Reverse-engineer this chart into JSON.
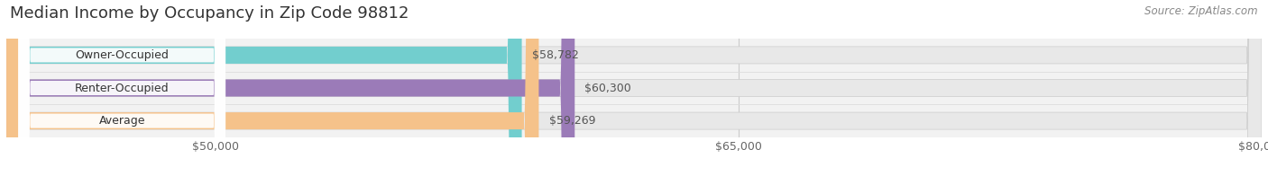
{
  "title": "Median Income by Occupancy in Zip Code 98812",
  "source": "Source: ZipAtlas.com",
  "categories": [
    "Owner-Occupied",
    "Renter-Occupied",
    "Average"
  ],
  "values": [
    58782,
    60300,
    59269
  ],
  "labels": [
    "$58,782",
    "$60,300",
    "$59,269"
  ],
  "bar_colors": [
    "#72cece",
    "#9b7bb8",
    "#f5c28a"
  ],
  "bar_bg_color": "#e8e8e8",
  "xmin": 44000,
  "xmax": 80000,
  "xticks": [
    50000,
    65000,
    80000
  ],
  "xtick_labels": [
    "$50,000",
    "$65,000",
    "$80,000"
  ],
  "title_fontsize": 13,
  "source_fontsize": 8.5,
  "label_fontsize": 9,
  "value_fontsize": 9,
  "tick_fontsize": 9,
  "bar_height": 0.52,
  "background_color": "#ffffff",
  "plot_bg_color": "#f2f2f2"
}
